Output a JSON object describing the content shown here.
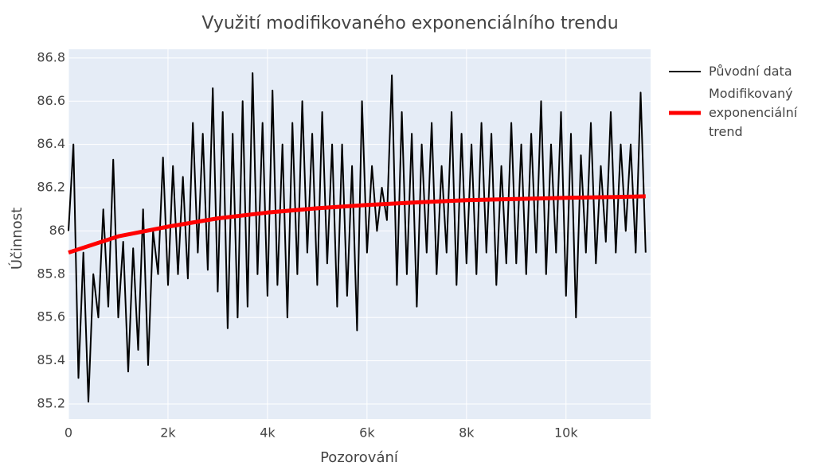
{
  "chart_data": {
    "type": "line",
    "title": "Využití modifikovaného exponenciálního trendu",
    "x_label": "Pozorování",
    "y_label": "Účinnost",
    "xlim": [
      0,
      11700
    ],
    "ylim": [
      85.13,
      86.84
    ],
    "xticks": [
      {
        "value": 0,
        "label": "0"
      },
      {
        "value": 2000,
        "label": "2k"
      },
      {
        "value": 4000,
        "label": "4k"
      },
      {
        "value": 6000,
        "label": "6k"
      },
      {
        "value": 8000,
        "label": "8k"
      },
      {
        "value": 10000,
        "label": "10k"
      }
    ],
    "yticks": [
      85.2,
      85.4,
      85.6,
      85.8,
      86,
      86.2,
      86.4,
      86.6,
      86.8
    ],
    "grid": true,
    "series": [
      {
        "name": "Původní data",
        "color": "#000000",
        "width": 2,
        "x": [
          0,
          100,
          200,
          300,
          400,
          500,
          600,
          700,
          800,
          900,
          1000,
          1100,
          1200,
          1300,
          1400,
          1500,
          1600,
          1700,
          1800,
          1900,
          2000,
          2100,
          2200,
          2300,
          2400,
          2500,
          2600,
          2700,
          2800,
          2900,
          3000,
          3100,
          3200,
          3300,
          3400,
          3500,
          3600,
          3700,
          3800,
          3900,
          4000,
          4100,
          4200,
          4300,
          4400,
          4500,
          4600,
          4700,
          4800,
          4900,
          5000,
          5100,
          5200,
          5300,
          5400,
          5500,
          5600,
          5700,
          5800,
          5900,
          6000,
          6100,
          6200,
          6300,
          6400,
          6500,
          6600,
          6700,
          6800,
          6900,
          7000,
          7100,
          7200,
          7300,
          7400,
          7500,
          7600,
          7700,
          7800,
          7900,
          8000,
          8100,
          8200,
          8300,
          8400,
          8500,
          8600,
          8700,
          8800,
          8900,
          9000,
          9100,
          9200,
          9300,
          9400,
          9500,
          9600,
          9700,
          9800,
          9900,
          10000,
          10100,
          10200,
          10300,
          10400,
          10500,
          10600,
          10700,
          10800,
          10900,
          11000,
          11100,
          11200,
          11300,
          11400,
          11500,
          11600
        ],
        "values": [
          86.0,
          86.4,
          85.32,
          85.9,
          85.21,
          85.8,
          85.6,
          86.1,
          85.65,
          86.33,
          85.6,
          85.95,
          85.35,
          85.92,
          85.45,
          86.1,
          85.38,
          86.0,
          85.8,
          86.34,
          85.75,
          86.3,
          85.8,
          86.25,
          85.78,
          86.5,
          85.9,
          86.45,
          85.82,
          86.66,
          85.72,
          86.55,
          85.55,
          86.45,
          85.6,
          86.6,
          85.65,
          86.73,
          85.8,
          86.5,
          85.7,
          86.65,
          85.75,
          86.4,
          85.6,
          86.5,
          85.8,
          86.6,
          85.9,
          86.45,
          85.75,
          86.55,
          85.85,
          86.4,
          85.65,
          86.4,
          85.7,
          86.3,
          85.54,
          86.6,
          85.9,
          86.3,
          86.0,
          86.2,
          86.05,
          86.72,
          85.75,
          86.55,
          85.8,
          86.45,
          85.65,
          86.4,
          85.9,
          86.5,
          85.8,
          86.3,
          85.9,
          86.55,
          85.75,
          86.45,
          85.85,
          86.4,
          85.8,
          86.5,
          85.9,
          86.45,
          85.75,
          86.3,
          85.85,
          86.5,
          85.85,
          86.4,
          85.8,
          86.45,
          85.9,
          86.6,
          85.8,
          86.4,
          85.9,
          86.55,
          85.7,
          86.45,
          85.6,
          86.35,
          85.9,
          86.5,
          85.85,
          86.3,
          85.95,
          86.55,
          85.9,
          86.4,
          86.0,
          86.4,
          85.9,
          86.64,
          85.9
        ]
      },
      {
        "name": "Modifikovaný exponenciální trend",
        "color": "#ff0000",
        "width": 5,
        "x": [
          0,
          1000,
          2000,
          3000,
          4000,
          5000,
          6000,
          7000,
          8000,
          9000,
          10000,
          11000,
          11600
        ],
        "values": [
          85.9,
          85.975,
          86.02,
          86.058,
          86.085,
          86.105,
          86.12,
          86.132,
          86.142,
          86.148,
          86.153,
          86.157,
          86.16
        ]
      }
    ]
  }
}
